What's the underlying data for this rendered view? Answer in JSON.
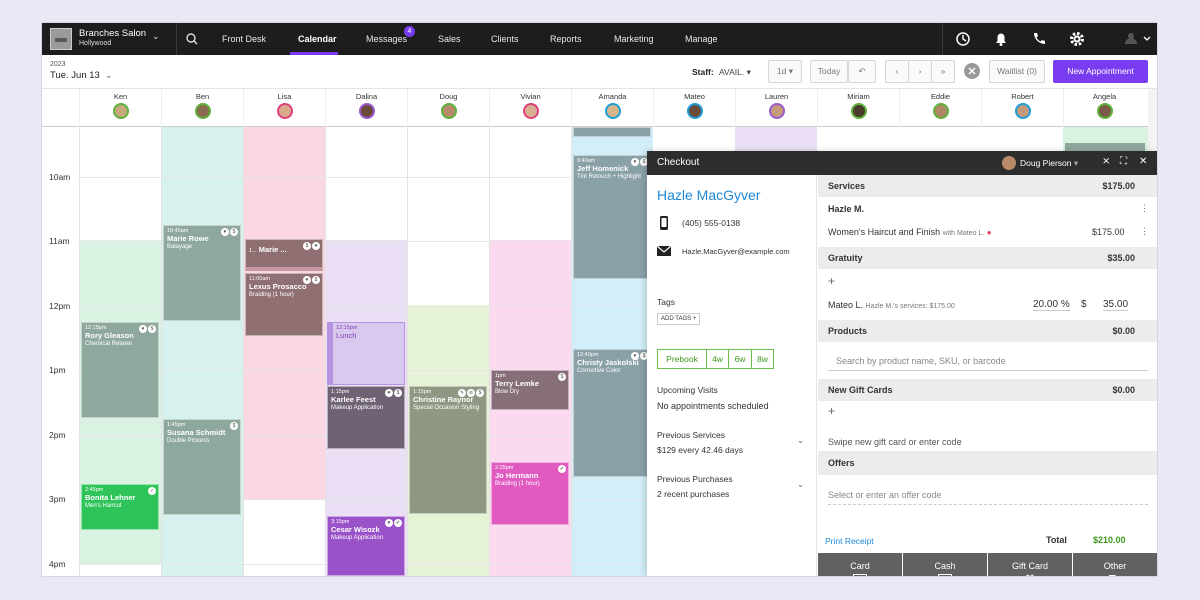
{
  "topbar": {
    "location_name": "Branches Salon",
    "location_sub": "Hollywood",
    "nav": [
      {
        "label": "Front Desk"
      },
      {
        "label": "Calendar"
      },
      {
        "label": "Messages"
      },
      {
        "label": "Sales"
      },
      {
        "label": "Clients"
      },
      {
        "label": "Reports"
      },
      {
        "label": "Marketing"
      },
      {
        "label": "Manage"
      }
    ],
    "active_nav": "Calendar",
    "messages_badge": "4"
  },
  "toolbar": {
    "year": "2023",
    "date": "Tue. Jun 13",
    "staff_label": "Staff:",
    "staff_value": "AVAIL.",
    "view": "1d",
    "today": "Today",
    "waitlist": "Waitlist (0)",
    "new_appointment": "New Appointment"
  },
  "staff": [
    {
      "name": "Ken",
      "ring": "#5fb23a"
    },
    {
      "name": "Ben",
      "ring": "#5fb23a"
    },
    {
      "name": "Lisa",
      "ring": "#e0407a"
    },
    {
      "name": "Dalina",
      "ring": "#9a5bd0"
    },
    {
      "name": "Doug",
      "ring": "#5fb23a"
    },
    {
      "name": "Vivian",
      "ring": "#e0407a"
    },
    {
      "name": "Amanda",
      "ring": "#1e9fd8"
    },
    {
      "name": "Mateo",
      "ring": "#1e9fd8"
    },
    {
      "name": "Lauren",
      "ring": "#9a5bd0"
    },
    {
      "name": "Miriam",
      "ring": "#5fb23a"
    },
    {
      "name": "Eddie",
      "ring": "#5fb23a"
    },
    {
      "name": "Robert",
      "ring": "#1e9fd8"
    },
    {
      "name": "Angela",
      "ring": "#5fb23a"
    }
  ],
  "times": [
    "10am",
    "11am",
    "12pm",
    "1pm",
    "2pm",
    "3pm",
    "4pm"
  ],
  "appointments": [
    {
      "time": "10:45am",
      "client": "Marie Rowe",
      "service": "Balayage"
    },
    {
      "time": "1...",
      "client": "Marie ...",
      "service": ""
    },
    {
      "time": "11:00am",
      "client": "Lexus Prosacco",
      "service": "Braiding (1 hour)"
    },
    {
      "time": "12:15pm",
      "client": "Rory Gleason",
      "service": "Chemical Relaxer"
    },
    {
      "time": "12:15pm",
      "client": "Lunch",
      "service": ""
    },
    {
      "time": "1:15pm",
      "client": "Karlee Feest",
      "service": "Makeup Application"
    },
    {
      "time": "1:15pm",
      "client": "Christine Raynor",
      "service": "Special Occasion Styling"
    },
    {
      "time": "1pm",
      "client": "Terry Lemke",
      "service": "Blow Dry"
    },
    {
      "time": "1:45pm",
      "client": "Susana Schmidt",
      "service": "Double Process"
    },
    {
      "time": "2:45pm",
      "client": "Bonita Lehner",
      "service": "Men's Haircut"
    },
    {
      "time": "2:25pm",
      "client": "Jo Hermann",
      "service": "Braiding (1 hour)"
    },
    {
      "time": "3:15pm",
      "client": "Cesar Wisozk",
      "service": "Makeup Application"
    },
    {
      "time": "9:40am",
      "client": "Jeff Homenick",
      "service": "Tint Retouch + Highlight"
    },
    {
      "time": "12:40pm",
      "client": "Christy Jaskolski",
      "service": "Corrective Color"
    }
  ],
  "checkout": {
    "title": "Checkout",
    "user": "Doug Pierson",
    "client": {
      "name": "Hazle MacGyver",
      "phone": "(405) 555-0138",
      "email": "Hazle.MacGyver@example.com"
    },
    "tags_label": "Tags",
    "add_tags": "ADD TAGS +",
    "prebook": [
      "Prebook",
      "4w",
      "6w",
      "8w"
    ],
    "upcoming_label": "Upcoming Visits",
    "upcoming_value": "No appointments scheduled",
    "prev_services_label": "Previous Services",
    "prev_services_value": "$129 every 42.46 days",
    "prev_purchases_label": "Previous Purchases",
    "prev_purchases_value": "2 recent purchases",
    "services": {
      "title": "Services",
      "amount": "$175.00",
      "client_short": "Hazle M.",
      "item": "Women's Haircut and Finish",
      "item_with": "with Mateo L.",
      "item_price": "$175.00"
    },
    "gratuity": {
      "title": "Gratuity",
      "amount": "$35.00",
      "plus": "+",
      "staff": "Mateo L.",
      "detail": "Hazle M.'s services: $175.00",
      "percent": "20.00",
      "pct_sign": "%",
      "dollar_sign": "$",
      "value": "35.00"
    },
    "products": {
      "title": "Products",
      "amount": "$0.00",
      "placeholder": "Search by product name, SKU, or barcode"
    },
    "gift_cards": {
      "title": "New Gift Cards",
      "amount": "$0.00",
      "plus": "+",
      "placeholder": "Swipe new gift card or enter code"
    },
    "offers": {
      "title": "Offers",
      "placeholder": "Select or enter an offer code"
    },
    "print_receipt": "Print Receipt",
    "total_label": "Total",
    "total_value": "$210.00",
    "payment": [
      "Card",
      "Cash",
      "Gift Card",
      "Other"
    ]
  },
  "colors": {
    "accent": "#7a3cf0",
    "link": "#1e88d8",
    "total": "#3c9a1e"
  }
}
